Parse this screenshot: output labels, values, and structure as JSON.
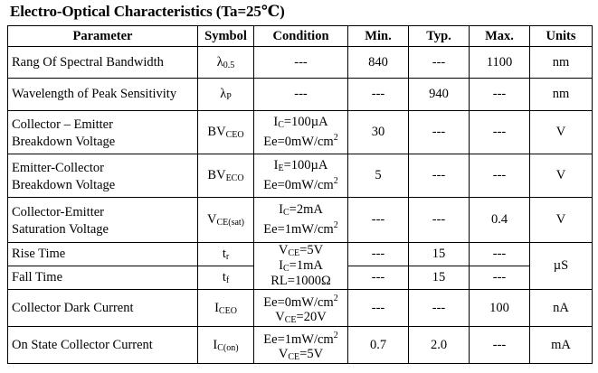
{
  "title": "Electro-Optical Characteristics (Ta=25℃)",
  "headers": [
    "Parameter",
    "Symbol",
    "Condition",
    "Min.",
    "Typ.",
    "Max.",
    "Units"
  ],
  "rows": [
    {
      "param": [
        "Rang Of Spectral Bandwidth"
      ],
      "sym": "λ",
      "sym_sub": "0.5",
      "cond": [
        "---"
      ],
      "min": "840",
      "typ": "---",
      "max": "1100",
      "unit": "nm"
    },
    {
      "param": [
        "Wavelength of Peak Sensitivity"
      ],
      "sym": "λ",
      "sym_sub": "P",
      "cond": [
        "---"
      ],
      "min": "---",
      "typ": "940",
      "max": "---",
      "unit": "nm"
    },
    {
      "param": [
        "Collector – Emitter",
        "Breakdown Voltage"
      ],
      "sym": "BV",
      "sym_sub": "CEO",
      "cond": [
        "I",
        "C",
        "=100µA",
        "Ee=0mW/cm",
        "2"
      ],
      "min": "30",
      "typ": "---",
      "max": "---",
      "unit": "V"
    },
    {
      "param": [
        "Emitter-Collector",
        "Breakdown Voltage"
      ],
      "sym": "BV",
      "sym_sub": "ECO",
      "cond": [
        "I",
        "E",
        "=100µA",
        "Ee=0mW/cm",
        "2"
      ],
      "min": "5",
      "typ": "---",
      "max": "---",
      "unit": "V"
    },
    {
      "param": [
        "Collector-Emitter",
        "Saturation Voltage"
      ],
      "sym": "V",
      "sym_sub": "CE(sat)",
      "cond": [
        "I",
        "C",
        "=2mA",
        "Ee=1mW/cm",
        "2"
      ],
      "min": "---",
      "typ": "---",
      "max": "0.4",
      "unit": "V"
    },
    {
      "param": [
        "Rise Time"
      ],
      "sym": "t",
      "sym_sub": "r",
      "min": "---",
      "typ": "15",
      "max": "---"
    },
    {
      "param": [
        "Fall Time"
      ],
      "sym": "t",
      "sym_sub": "f",
      "min": "---",
      "typ": "15",
      "max": "---"
    },
    {
      "param": [
        "Collector Dark Current"
      ],
      "sym": "I",
      "sym_sub": "CEO",
      "cond": [
        "Ee=0mW/cm",
        "2",
        "V",
        "CE",
        "=20V"
      ],
      "min": "---",
      "typ": "---",
      "max": "100",
      "unit": "nA"
    },
    {
      "param": [
        "On State Collector Current"
      ],
      "sym": "I",
      "sym_sub": "C(on)",
      "cond": [
        "Ee=1mW/cm",
        "2",
        "V",
        "CE",
        "=5V"
      ],
      "min": "0.7",
      "typ": "2.0",
      "max": "---",
      "unit": "mA"
    }
  ],
  "timing_cond": [
    "V",
    "CE",
    "=5V",
    "I",
    "C",
    "=1mA",
    "RL=1000Ω"
  ],
  "timing_unit": "µS"
}
